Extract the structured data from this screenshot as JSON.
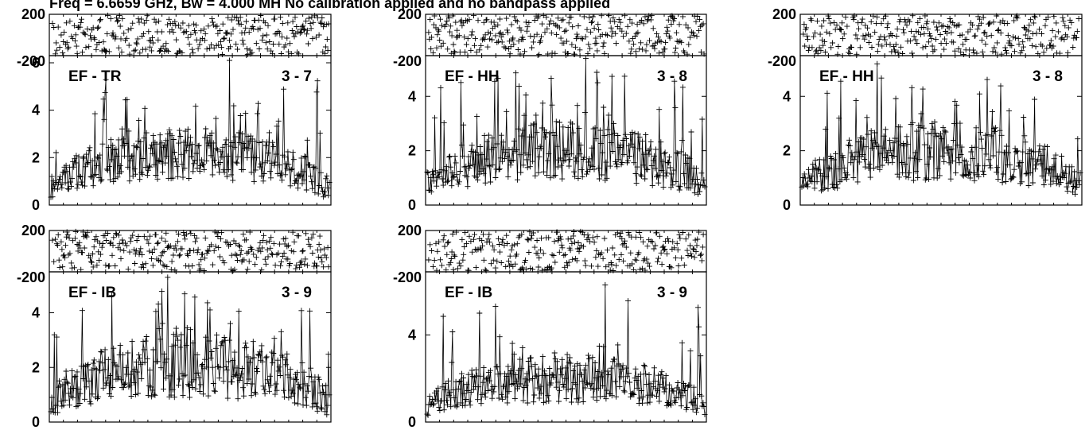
{
  "header": "Freq = 6.6659 GHz, Bw = 4.000 MH   No calibration applied and no bandpass applied",
  "colors": {
    "ink": "#000000",
    "background": "#ffffff"
  },
  "chart_data": [
    {
      "type": "scatter",
      "marker": "plus",
      "baseline": "EF - TR",
      "antennas": "3 - 7",
      "phase": {
        "ylim": [
          -200,
          200
        ],
        "tick_labels": [
          "200",
          "-200"
        ],
        "band": [
          -190,
          190
        ],
        "points": 190
      },
      "amplitude": {
        "ylim": [
          0,
          6.3
        ],
        "ticks": [
          0,
          2,
          4,
          6
        ],
        "tick_labels": [
          "0",
          "2",
          "4",
          "6"
        ],
        "points": 330,
        "edge_mean": 0.8,
        "center_mean": 2.2,
        "typical_spread": 1.1,
        "peak": 6.1,
        "peak_channel_fraction": 0.64
      }
    },
    {
      "type": "scatter",
      "marker": "plus",
      "baseline": "EF - HH",
      "antennas": "3 - 8",
      "phase": {
        "ylim": [
          -200,
          200
        ],
        "tick_labels": [
          "200",
          "-200"
        ],
        "band": [
          -190,
          190
        ],
        "points": 190
      },
      "amplitude": {
        "ylim": [
          0,
          5.5
        ],
        "ticks": [
          0,
          2,
          4
        ],
        "tick_labels": [
          "0",
          "2",
          "4"
        ],
        "points": 330,
        "edge_mean": 0.8,
        "center_mean": 2.0,
        "typical_spread": 1.1,
        "peak": 5.4,
        "peak_channel_fraction": 0.57
      }
    },
    {
      "type": "scatter",
      "marker": "plus",
      "baseline": "EF - HH",
      "antennas": "3 - 8",
      "phase": {
        "ylim": [
          -200,
          200
        ],
        "tick_labels": [
          "200",
          "-200"
        ],
        "band": [
          -190,
          190
        ],
        "points": 190
      },
      "amplitude": {
        "ylim": [
          0,
          5.5
        ],
        "ticks": [
          0,
          2,
          4
        ],
        "tick_labels": [
          "0",
          "2",
          "4"
        ],
        "points": 330,
        "edge_mean": 0.8,
        "center_mean": 2.0,
        "typical_spread": 1.1,
        "peak": 5.2,
        "peak_channel_fraction": 0.27
      }
    },
    {
      "type": "scatter",
      "marker": "plus",
      "baseline": "EF - IB",
      "antennas": "3 - 9",
      "phase": {
        "ylim": [
          -200,
          200
        ],
        "tick_labels": [
          "200",
          "-200"
        ],
        "band": [
          -190,
          190
        ],
        "points": 190
      },
      "amplitude": {
        "ylim": [
          0,
          5.5
        ],
        "ticks": [
          0,
          2,
          4
        ],
        "tick_labels": [
          "0",
          "2",
          "4"
        ],
        "points": 330,
        "edge_mean": 0.8,
        "center_mean": 2.1,
        "typical_spread": 1.2,
        "peak": 5.3,
        "peak_channel_fraction": 0.42
      }
    },
    {
      "type": "scatter",
      "marker": "plus",
      "baseline": "EF - IB",
      "antennas": "3 - 9",
      "phase": {
        "ylim": [
          -200,
          200
        ],
        "tick_labels": [
          "200",
          "-200"
        ],
        "band": [
          -190,
          190
        ],
        "points": 190
      },
      "amplitude": {
        "ylim": [
          0,
          6.9
        ],
        "ticks": [
          0,
          4
        ],
        "tick_labels": [
          "0",
          "4"
        ],
        "points": 330,
        "edge_mean": 0.8,
        "center_mean": 2.0,
        "typical_spread": 1.1,
        "peak": 6.3,
        "peak_channel_fraction": 0.64
      }
    }
  ]
}
